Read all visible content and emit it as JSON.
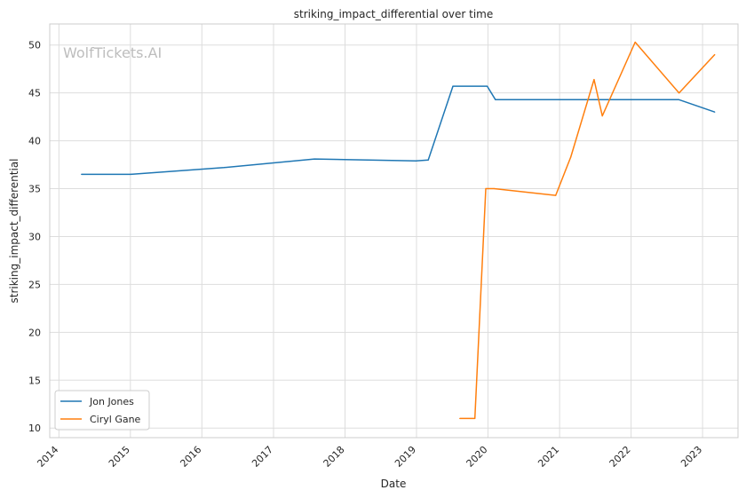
{
  "chart_data": {
    "type": "line",
    "title": "striking_impact_differential over time",
    "xlabel": "Date",
    "ylabel": "striking_impact_differential",
    "watermark": "WolfTickets.AI",
    "x_ticks": [
      "2014",
      "2015",
      "2016",
      "2017",
      "2018",
      "2019",
      "2020",
      "2021",
      "2022",
      "2023"
    ],
    "y_ticks": [
      "10",
      "15",
      "20",
      "25",
      "30",
      "35",
      "40",
      "45",
      "50"
    ],
    "xlim": [
      "2013-11-15",
      "2023-07-01"
    ],
    "ylim": [
      9.0,
      52.2
    ],
    "grid": true,
    "legend_position": "lower-left",
    "series": [
      {
        "name": "Jon Jones",
        "color": "#1f77b4",
        "points": [
          [
            "2014-04-26",
            36.5
          ],
          [
            "2015-01-03",
            36.5
          ],
          [
            "2016-04-23",
            37.2
          ],
          [
            "2017-07-29",
            38.1
          ],
          [
            "2018-12-29",
            37.9
          ],
          [
            "2019-03-02",
            38.0
          ],
          [
            "2019-07-06",
            45.7
          ],
          [
            "2019-12-28",
            45.7
          ],
          [
            "2020-02-08",
            44.3
          ],
          [
            "2022-09-01",
            44.3
          ],
          [
            "2023-03-04",
            43.0
          ]
        ]
      },
      {
        "name": "Ciryl Gane",
        "color": "#ff7f0e",
        "points": [
          [
            "2019-08-10",
            11.0
          ],
          [
            "2019-10-26",
            11.0
          ],
          [
            "2019-12-21",
            35.0
          ],
          [
            "2020-02-01",
            35.0
          ],
          [
            "2020-12-12",
            34.3
          ],
          [
            "2021-02-27",
            38.3
          ],
          [
            "2021-06-26",
            46.4
          ],
          [
            "2021-08-07",
            42.6
          ],
          [
            "2022-01-22",
            50.3
          ],
          [
            "2022-09-03",
            45.0
          ],
          [
            "2023-03-04",
            49.0
          ]
        ]
      }
    ]
  }
}
